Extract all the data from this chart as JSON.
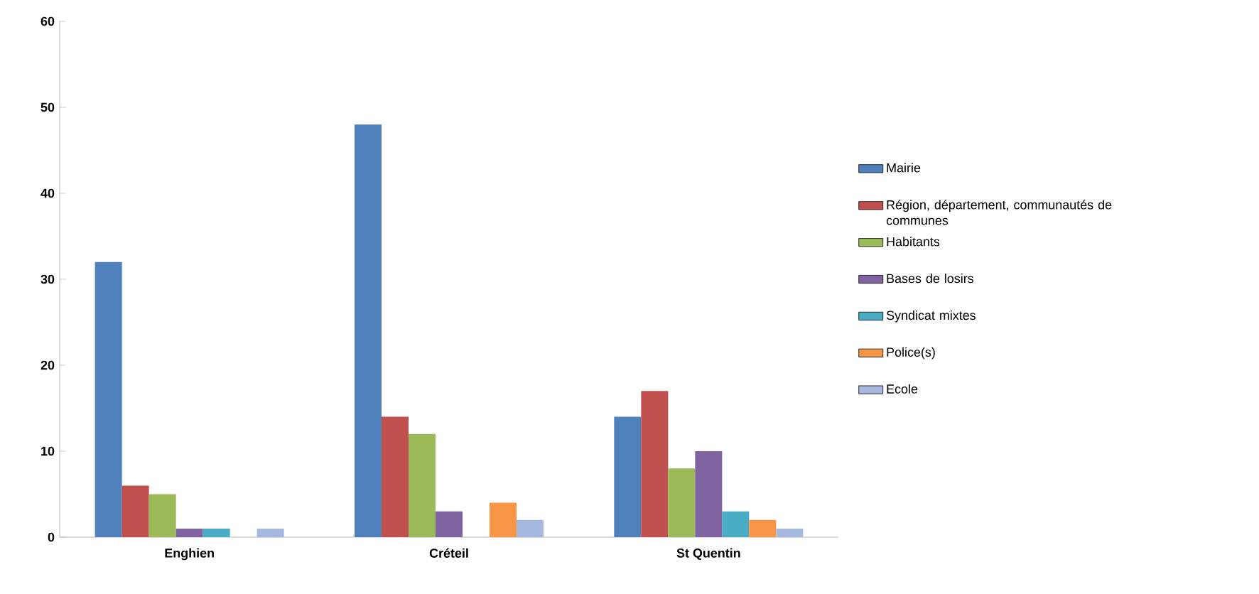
{
  "chart_data": {
    "type": "bar",
    "categories": [
      "Enghien",
      "Créteil",
      "St Quentin"
    ],
    "series": [
      {
        "name": "Mairie",
        "color": "#4f81bd",
        "values": [
          32,
          48,
          14
        ]
      },
      {
        "name": "Région, département, communautés de communes",
        "color": "#c0504d",
        "values": [
          6,
          14,
          17
        ]
      },
      {
        "name": "Habitants",
        "color": "#9bbb59",
        "values": [
          5,
          12,
          8
        ]
      },
      {
        "name": "Bases de losirs",
        "color": "#8064a2",
        "values": [
          1,
          3,
          10
        ]
      },
      {
        "name": "Syndicat mixtes",
        "color": "#4bacc6",
        "values": [
          1,
          0,
          3
        ]
      },
      {
        "name": "Police(s)",
        "color": "#f79646",
        "values": [
          0,
          4,
          2
        ]
      },
      {
        "name": "Ecole",
        "color": "#a5b9df",
        "values": [
          1,
          2,
          1
        ]
      }
    ],
    "ylim": [
      0,
      60
    ],
    "yticks": [
      0,
      10,
      20,
      30,
      40,
      50,
      60
    ],
    "grid": false,
    "legend": "right"
  }
}
